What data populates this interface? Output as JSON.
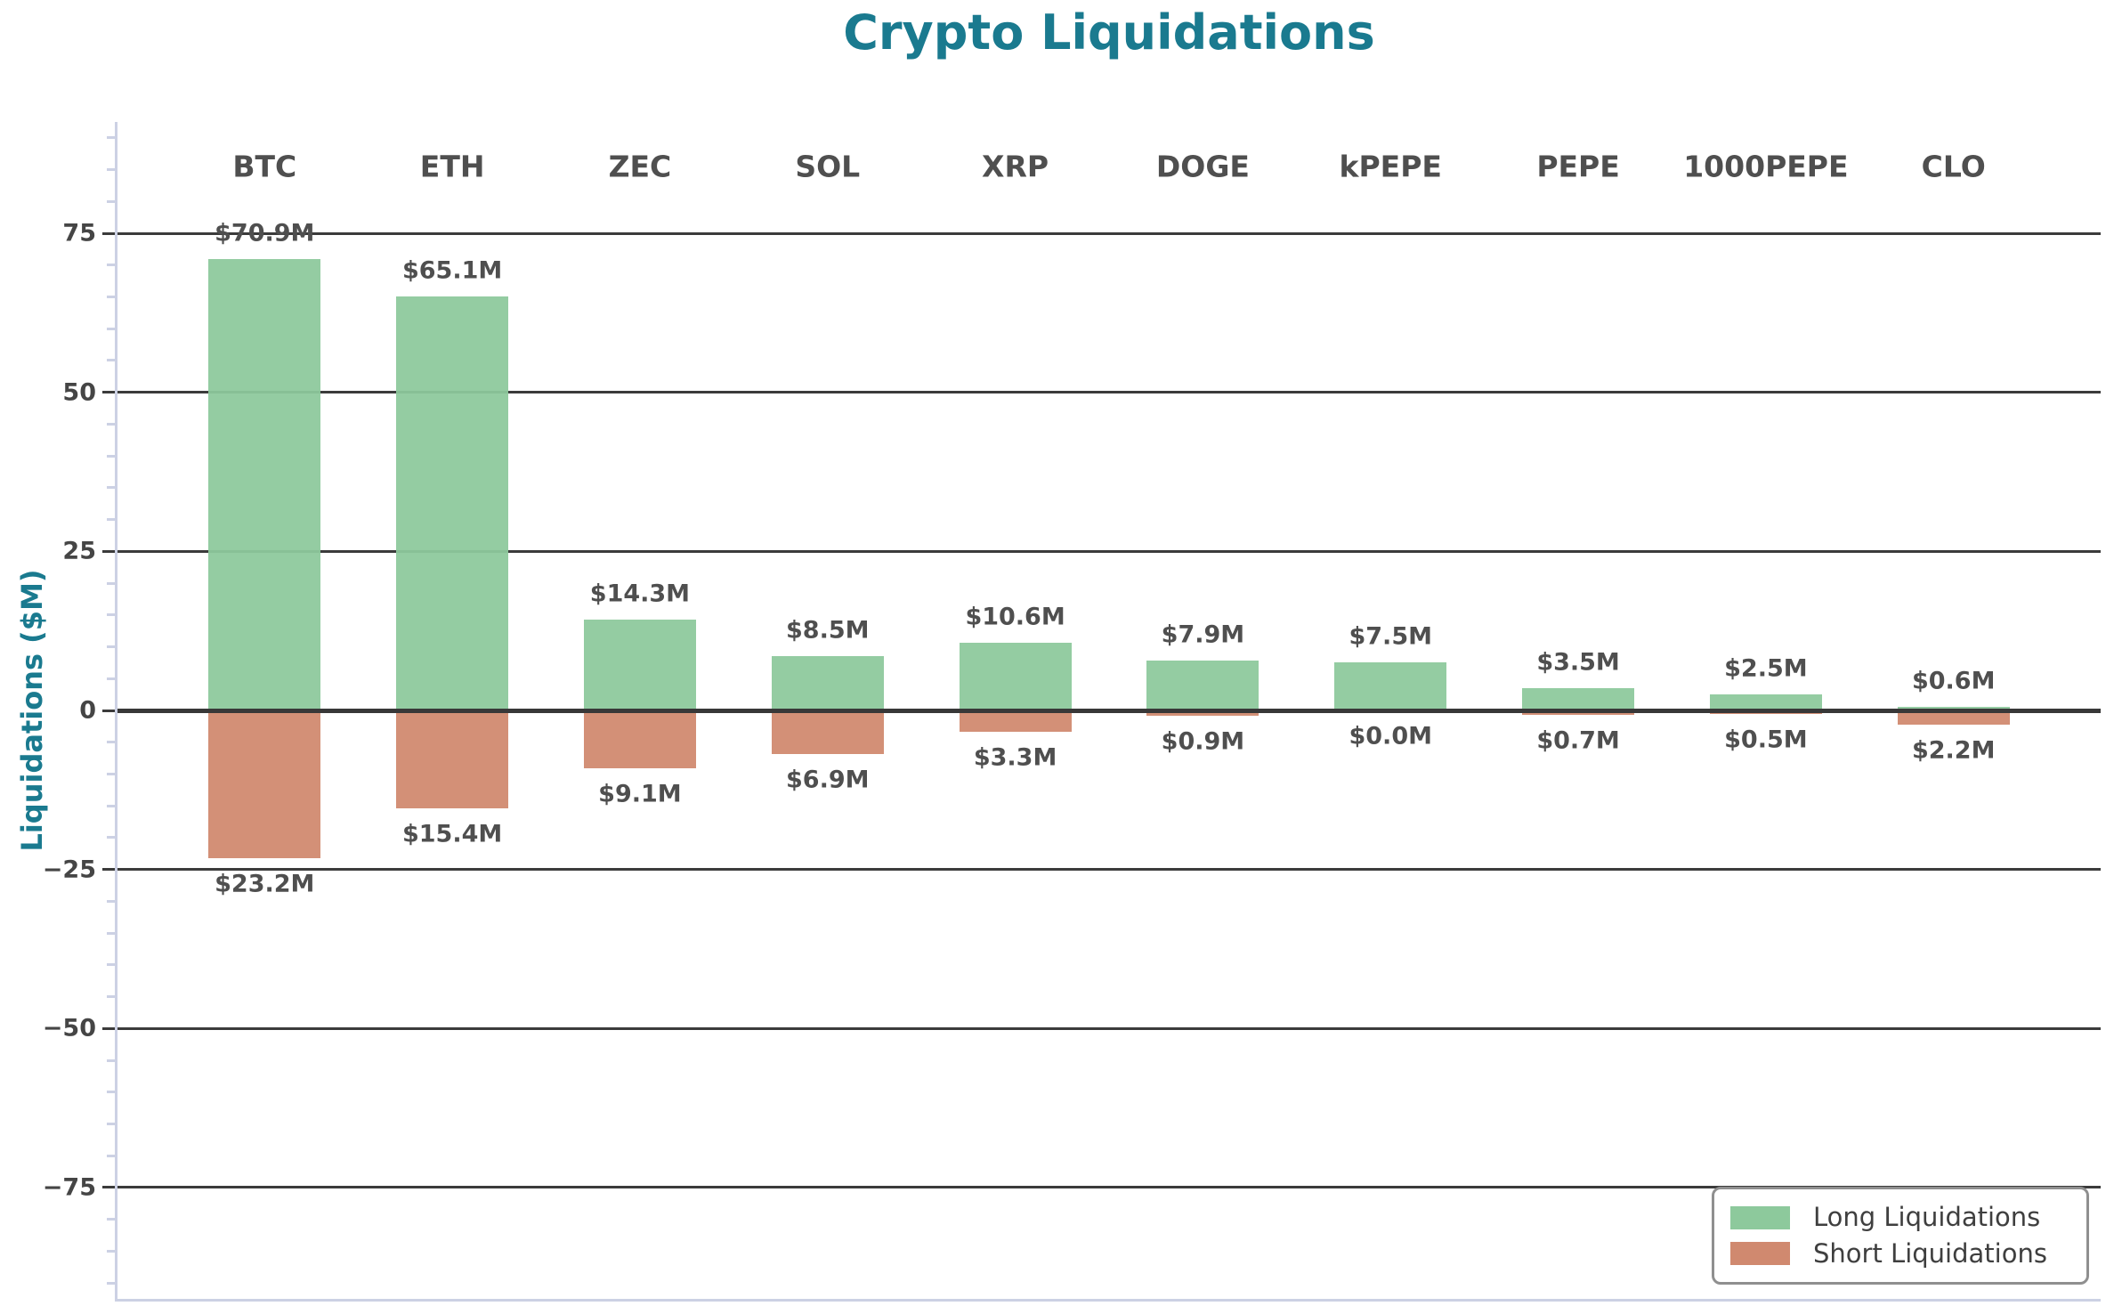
{
  "title": "Crypto Liquidations",
  "y_axis": {
    "label": "Liquidations ($M)",
    "tick_labels": [
      "75",
      "50",
      "25",
      "0",
      "−25",
      "−50",
      "−75"
    ],
    "tick_values": [
      75,
      50,
      25,
      0,
      -25,
      -50,
      -75
    ],
    "minor_tick_step": 5,
    "minor_tick_range": [
      -90,
      90
    ]
  },
  "legend": {
    "position": "lower right",
    "items": [
      {
        "label": "Long Liquidations",
        "color": "#8dc99c"
      },
      {
        "label": "Short Liquidations",
        "color": "#d0896f"
      }
    ]
  },
  "chart_data": {
    "type": "bar",
    "title": "Crypto Liquidations",
    "xlabel": "",
    "ylabel": "Liquidations ($M)",
    "ylim": [
      -92.5,
      92.5
    ],
    "grid": "horizontal-major",
    "legend_position": "lower right",
    "categories": [
      "BTC",
      "ETH",
      "ZEC",
      "SOL",
      "XRP",
      "DOGE",
      "kPEPE",
      "PEPE",
      "1000PEPE",
      "CLO"
    ],
    "series": [
      {
        "name": "Long Liquidations",
        "direction": "up",
        "color": "#8dc99c",
        "values": [
          70.9,
          65.1,
          14.3,
          8.5,
          10.6,
          7.9,
          7.5,
          3.5,
          2.5,
          0.6
        ],
        "labels": [
          "$70.9M",
          "$65.1M",
          "$14.3M",
          "$8.5M",
          "$10.6M",
          "$7.9M",
          "$7.5M",
          "$3.5M",
          "$2.5M",
          "$0.6M"
        ]
      },
      {
        "name": "Short Liquidations",
        "direction": "down",
        "color": "#d0896f",
        "values": [
          23.2,
          15.4,
          9.1,
          6.9,
          3.3,
          0.9,
          0.0,
          0.7,
          0.5,
          2.2
        ],
        "labels": [
          "$23.2M",
          "$15.4M",
          "$9.1M",
          "$6.9M",
          "$3.3M",
          "$0.9M",
          "$0.0M",
          "$0.7M",
          "$0.5M",
          "$2.2M"
        ]
      }
    ]
  },
  "colors": {
    "title": "#1a7a8f",
    "axis_label": "#1a7a8f",
    "tick_label": "#454545",
    "bar_label": "#4f4f4f",
    "category_label": "#4f4f4f",
    "grid": "#3b3b3b",
    "zero_line": "#383838",
    "spine": "#ccd1e4",
    "minor_tick": "#ccd1e4",
    "legend_border": "#8f8f8f",
    "legend_text": "#3f3f3f",
    "background": "#ffffff"
  }
}
